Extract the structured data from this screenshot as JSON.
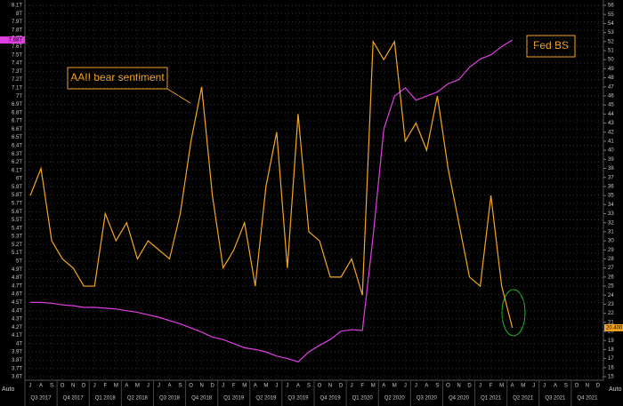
{
  "chart_data": {
    "type": "line",
    "x": [
      "J",
      "A",
      "S",
      "O",
      "N",
      "D",
      "J",
      "F",
      "M",
      "A",
      "M",
      "J",
      "J",
      "A",
      "S",
      "O",
      "N",
      "D",
      "J",
      "F",
      "M",
      "A",
      "M",
      "J",
      "J",
      "A",
      "S",
      "O",
      "N",
      "D",
      "J",
      "F",
      "M",
      "A",
      "M",
      "J",
      "J",
      "A",
      "S",
      "O",
      "N",
      "D",
      "J",
      "F",
      "M",
      "A",
      "M",
      "J",
      "J",
      "A",
      "S",
      "O",
      "N",
      "D"
    ],
    "quarters": [
      "Q3 2017",
      "Q4 2017",
      "Q1 2018",
      "Q2 2018",
      "Q3 2018",
      "Q4 2018",
      "Q1 2019",
      "Q2 2019",
      "Q3 2019",
      "Q4 2019",
      "Q1 2020",
      "Q2 2020",
      "Q3 2020",
      "Q4 2020",
      "Q1 2021",
      "Q2 2021",
      "Q3 2021",
      "Q4 2021"
    ],
    "series": [
      {
        "name": "Fed BS",
        "color": "#e040e0",
        "axis": "y",
        "last_label": "7.68T",
        "values": [
          4.5,
          4.5,
          4.49,
          4.47,
          4.46,
          4.44,
          4.44,
          4.43,
          4.42,
          4.4,
          4.38,
          4.35,
          4.32,
          4.28,
          4.24,
          4.19,
          4.14,
          4.08,
          4.05,
          4.0,
          3.95,
          3.93,
          3.9,
          3.85,
          3.82,
          3.78,
          3.9,
          3.98,
          4.05,
          4.15,
          4.17,
          4.16,
          5.3,
          6.6,
          7.0,
          7.1,
          6.95,
          7.0,
          7.05,
          7.15,
          7.2,
          7.35,
          7.45,
          7.5,
          7.6,
          7.68,
          null,
          null,
          null,
          null,
          null,
          null,
          null,
          null
        ]
      },
      {
        "name": "AAII bear sentiment",
        "color": "#f5a623",
        "axis": "y2",
        "last_label": "20.400",
        "values": [
          35,
          38,
          30,
          28,
          27,
          25,
          25,
          33,
          30,
          32,
          28,
          30,
          29,
          28,
          33,
          41,
          47,
          35,
          27,
          29,
          32,
          25,
          36,
          42,
          27,
          44,
          31,
          30,
          26,
          26,
          28,
          24,
          52,
          50,
          52,
          41,
          43,
          40,
          46,
          38,
          32,
          26,
          25,
          35,
          25,
          20.4,
          null,
          null,
          null,
          null,
          null,
          null,
          null,
          null
        ]
      }
    ],
    "ylim": [
      3.6,
      8.1
    ],
    "yticks": [
      {
        "value": 3.6,
        "label": "3.6T"
      },
      {
        "value": 3.7,
        "label": "3.7T"
      },
      {
        "value": 3.8,
        "label": "3.8T"
      },
      {
        "value": 3.9,
        "label": "3.9T"
      },
      {
        "value": 4,
        "label": "4T"
      },
      {
        "value": 4.1,
        "label": "4.1T"
      },
      {
        "value": 4.2,
        "label": "4.2T"
      },
      {
        "value": 4.3,
        "label": "4.3T"
      },
      {
        "value": 4.4,
        "label": "4.4T"
      },
      {
        "value": 4.5,
        "label": "4.5T"
      },
      {
        "value": 4.6,
        "label": "4.6T"
      },
      {
        "value": 4.7,
        "label": "4.7T"
      },
      {
        "value": 4.8,
        "label": "4.8T"
      },
      {
        "value": 4.9,
        "label": "4.9T"
      },
      {
        "value": 5,
        "label": "5T"
      },
      {
        "value": 5.1,
        "label": "5.1T"
      },
      {
        "value": 5.2,
        "label": "5.2T"
      },
      {
        "value": 5.3,
        "label": "5.3T"
      },
      {
        "value": 5.4,
        "label": "5.4T"
      },
      {
        "value": 5.5,
        "label": "5.5T"
      },
      {
        "value": 5.6,
        "label": "5.6T"
      },
      {
        "value": 5.7,
        "label": "5.7T"
      },
      {
        "value": 5.8,
        "label": "5.8T"
      },
      {
        "value": 5.9,
        "label": "5.9T"
      },
      {
        "value": 6,
        "label": "6T"
      },
      {
        "value": 6.1,
        "label": "6.1T"
      },
      {
        "value": 6.2,
        "label": "6.2T"
      },
      {
        "value": 6.3,
        "label": "6.3T"
      },
      {
        "value": 6.4,
        "label": "6.4T"
      },
      {
        "value": 6.5,
        "label": "6.5T"
      },
      {
        "value": 6.6,
        "label": "6.6T"
      },
      {
        "value": 6.7,
        "label": "6.7T"
      },
      {
        "value": 6.8,
        "label": "6.8T"
      },
      {
        "value": 6.9,
        "label": "6.9T"
      },
      {
        "value": 7,
        "label": "7T"
      },
      {
        "value": 7.1,
        "label": "7.1T"
      },
      {
        "value": 7.2,
        "label": "7.2T"
      },
      {
        "value": 7.3,
        "label": "7.3T"
      },
      {
        "value": 7.4,
        "label": "7.4T"
      },
      {
        "value": 7.5,
        "label": "7.5T"
      },
      {
        "value": 7.6,
        "label": "7.6T"
      },
      {
        "value": 7.7,
        "label": "7.7T"
      },
      {
        "value": 7.8,
        "label": "7.8T"
      },
      {
        "value": 7.9,
        "label": "7.9T"
      },
      {
        "value": 8,
        "label": "8T"
      },
      {
        "value": 8.1,
        "label": "8.1T"
      }
    ],
    "y2lim": [
      15,
      56
    ],
    "y2ticks": [
      15,
      16,
      17,
      18,
      19,
      20,
      21,
      22,
      23,
      24,
      25,
      26,
      27,
      28,
      29,
      30,
      31,
      32,
      33,
      34,
      35,
      36,
      37,
      38,
      39,
      40,
      41,
      42,
      43,
      44,
      45,
      46,
      47,
      48,
      49,
      50,
      51,
      52,
      53,
      54,
      55,
      56
    ],
    "grid": true,
    "corner_labels": [
      "Auto",
      "Auto"
    ]
  }
}
